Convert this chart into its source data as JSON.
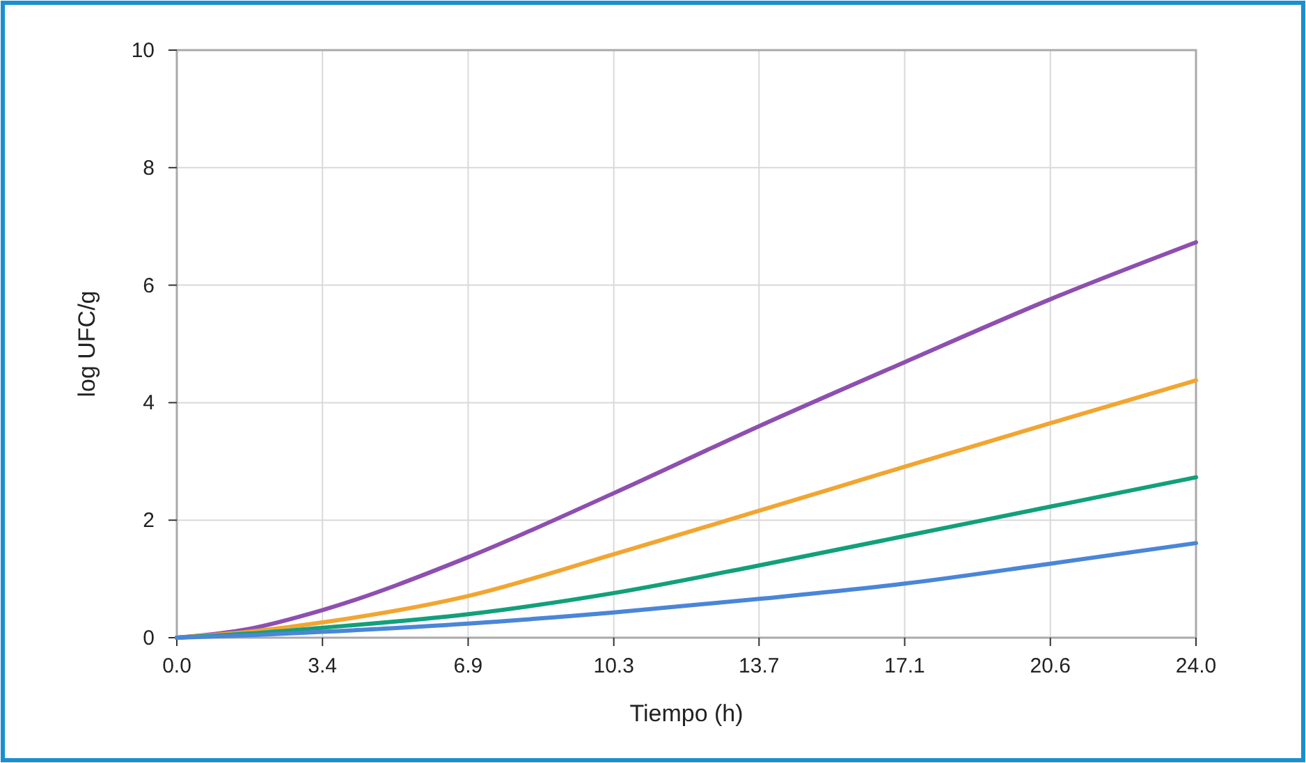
{
  "chart_data": {
    "type": "line",
    "xlabel": "Tiempo (h)",
    "ylabel": "log UFC/g",
    "x": [
      0,
      1.7,
      3.43,
      6.86,
      10.29,
      13.71,
      17.14,
      20.57,
      24
    ],
    "series": [
      {
        "color": "#8e4fb0",
        "values": [
          0,
          0.15,
          0.47,
          1.37,
          2.46,
          3.6,
          4.69,
          5.76,
          6.73
        ]
      },
      {
        "color": "#f2a530",
        "values": [
          0,
          0.1,
          0.26,
          0.71,
          1.42,
          2.16,
          2.91,
          3.65,
          4.38
        ]
      },
      {
        "color": "#12a07a",
        "values": [
          0,
          0.07,
          0.17,
          0.4,
          0.76,
          1.23,
          1.73,
          2.23,
          2.73
        ]
      },
      {
        "color": "#4a86d8",
        "values": [
          0,
          0.04,
          0.1,
          0.24,
          0.43,
          0.66,
          0.92,
          1.26,
          1.61
        ]
      }
    ],
    "xlim": [
      0,
      24
    ],
    "ylim": [
      0,
      10
    ],
    "xticks": [
      {
        "value": 0,
        "label": "0.0"
      },
      {
        "value": 3.43,
        "label": "3.4"
      },
      {
        "value": 6.86,
        "label": "6.9"
      },
      {
        "value": 10.29,
        "label": "10.3"
      },
      {
        "value": 13.71,
        "label": "13.7"
      },
      {
        "value": 17.14,
        "label": "17.1"
      },
      {
        "value": 20.57,
        "label": "20.6"
      },
      {
        "value": 24,
        "label": "24.0"
      }
    ],
    "yticks": [
      0,
      2,
      4,
      6,
      8,
      10
    ],
    "grid": true,
    "marker": "none",
    "line_style": "solid"
  }
}
